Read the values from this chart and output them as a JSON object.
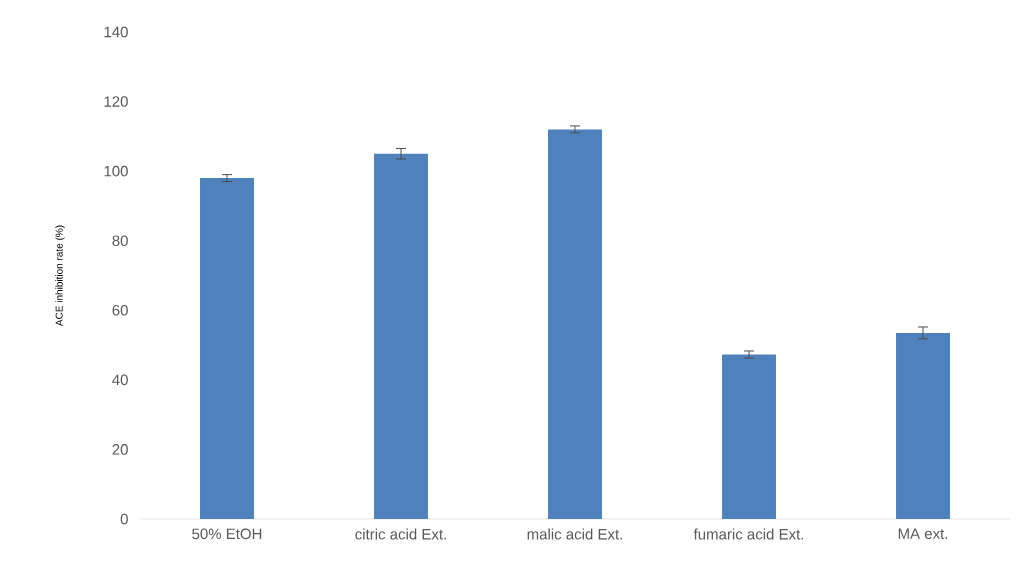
{
  "chart_data": {
    "type": "bar",
    "ylabel": "ACE inhibition rate (%)",
    "categories": [
      "50% EtOH",
      "citric acid Ext.",
      "malic acid Ext.",
      "fumaric acid Ext.",
      "MA ext."
    ],
    "values": [
      98,
      105,
      112,
      47.3,
      53.5
    ],
    "errors": [
      1,
      1.5,
      1,
      1,
      1.7
    ],
    "color": "#4f81bd",
    "ylim": [
      0,
      140
    ],
    "yticks": [
      0,
      20,
      40,
      60,
      80,
      100,
      120,
      140
    ]
  }
}
